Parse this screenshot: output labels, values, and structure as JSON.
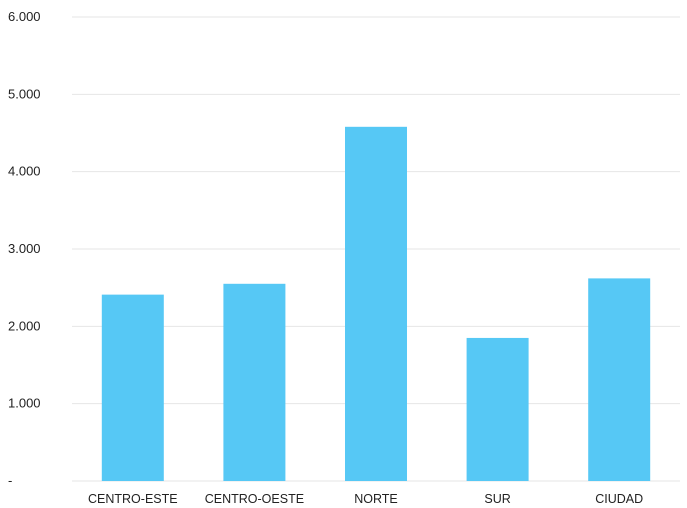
{
  "chart_data": {
    "type": "bar",
    "title": "",
    "xlabel": "",
    "ylabel": "",
    "categories": [
      "CENTRO-ESTE",
      "CENTRO-OESTE",
      "NORTE",
      "SUR",
      "CIUDAD"
    ],
    "values": [
      2410,
      2550,
      4580,
      1850,
      2620
    ],
    "ylim": [
      0,
      6000
    ],
    "yticks": [
      0,
      1000,
      2000,
      3000,
      4000,
      5000,
      6000
    ],
    "ytick_labels": [
      "-",
      "1.000",
      "2.000",
      "3.000",
      "4.000",
      "5.000",
      "6.000"
    ],
    "grid": true,
    "bar_color": "#56c8f5",
    "grid_color": "#e6e6e6"
  }
}
